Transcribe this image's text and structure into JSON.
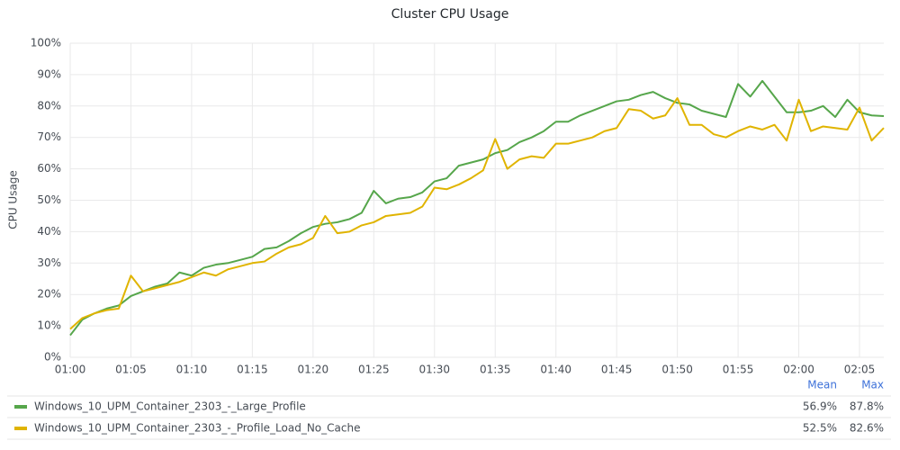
{
  "chart_data": {
    "type": "line",
    "title": "Cluster CPU Usage",
    "y_label": "CPU Usage",
    "x": [
      "01:00",
      "01:01",
      "01:02",
      "01:03",
      "01:04",
      "01:05",
      "01:06",
      "01:07",
      "01:08",
      "01:09",
      "01:10",
      "01:11",
      "01:12",
      "01:13",
      "01:14",
      "01:15",
      "01:16",
      "01:17",
      "01:18",
      "01:19",
      "01:20",
      "01:21",
      "01:22",
      "01:23",
      "01:24",
      "01:25",
      "01:26",
      "01:27",
      "01:28",
      "01:29",
      "01:30",
      "01:31",
      "01:32",
      "01:33",
      "01:34",
      "01:35",
      "01:36",
      "01:37",
      "01:38",
      "01:39",
      "01:40",
      "01:41",
      "01:42",
      "01:43",
      "01:44",
      "01:45",
      "01:46",
      "01:47",
      "01:48",
      "01:49",
      "01:50",
      "01:51",
      "01:52",
      "01:53",
      "01:54",
      "01:55",
      "01:56",
      "01:57",
      "01:58",
      "01:59",
      "02:00",
      "02:01",
      "02:02",
      "02:03",
      "02:04",
      "02:05",
      "02:06",
      "02:07"
    ],
    "xlim": [
      "01:00",
      "02:07"
    ],
    "xticks": [
      "01:00",
      "01:05",
      "01:10",
      "01:15",
      "01:20",
      "01:25",
      "01:30",
      "01:35",
      "01:40",
      "01:45",
      "01:50",
      "01:55",
      "02:00",
      "02:05"
    ],
    "ylim": [
      0,
      100
    ],
    "yticks": [
      {
        "value": 0,
        "label": "0%"
      },
      {
        "value": 10,
        "label": "10%"
      },
      {
        "value": 20,
        "label": "20%"
      },
      {
        "value": 30,
        "label": "30%"
      },
      {
        "value": 40,
        "label": "40%"
      },
      {
        "value": 50,
        "label": "50%"
      },
      {
        "value": 60,
        "label": "60%"
      },
      {
        "value": 70,
        "label": "70%"
      },
      {
        "value": 80,
        "label": "80%"
      },
      {
        "value": 90,
        "label": "90%"
      },
      {
        "value": 100,
        "label": "100%"
      }
    ],
    "grid": true,
    "legend_columns": [
      "Mean",
      "Max"
    ],
    "series": [
      {
        "name": "Windows_10_UPM_Container_2303_-_Large_Profile",
        "color": "#56a64b",
        "values": [
          7,
          12,
          14,
          15.5,
          16.5,
          19.5,
          21,
          22.5,
          23.5,
          27,
          26,
          28.5,
          29.5,
          30,
          31,
          32,
          34.5,
          35,
          37,
          39.5,
          41.5,
          42.5,
          43,
          44,
          46,
          53,
          49,
          50.5,
          51,
          52.5,
          56,
          57,
          61,
          62,
          63,
          65,
          66,
          68.5,
          70,
          72,
          75,
          75,
          77,
          78.5,
          80,
          81.5,
          82,
          83.5,
          84.5,
          82.5,
          81,
          80.5,
          78.5,
          77.5,
          76.5,
          87,
          83,
          88,
          83,
          78,
          78,
          78.5,
          80,
          76.5,
          82,
          78,
          77,
          76.8
        ],
        "stats": [
          {
            "value": 56.9,
            "label": "56.9%"
          },
          {
            "value": 87.8,
            "label": "87.8%"
          }
        ]
      },
      {
        "name": "Windows_10_UPM_Container_2303_-_Profile_Load_No_Cache",
        "color": "#e0b400",
        "values": [
          9,
          12.5,
          14,
          15,
          15.5,
          26,
          21,
          22,
          23,
          24,
          25.5,
          27,
          26,
          28,
          29,
          30,
          30.5,
          33,
          35,
          36,
          38,
          45,
          39.5,
          40,
          42,
          43,
          45,
          45.5,
          46,
          48,
          54,
          53.5,
          55,
          57,
          59.5,
          69.5,
          60,
          63,
          64,
          63.5,
          68,
          68,
          69,
          70,
          72,
          73,
          79,
          78.5,
          76,
          77,
          82.5,
          74,
          74,
          71,
          70,
          72,
          73.5,
          72.5,
          74,
          69,
          82,
          72,
          73.5,
          73,
          72.5,
          79.5,
          69,
          73
        ],
        "stats": [
          {
            "value": 52.5,
            "label": "52.5%"
          },
          {
            "value": 82.6,
            "label": "82.6%"
          }
        ]
      }
    ]
  }
}
